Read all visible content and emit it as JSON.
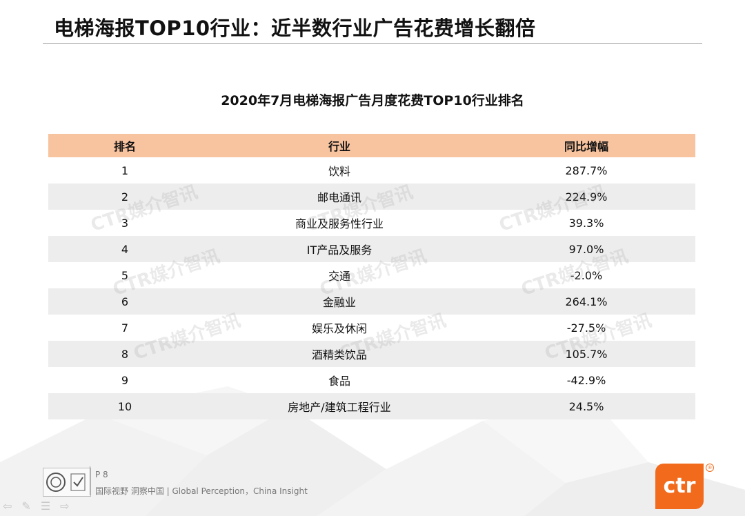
{
  "slide": {
    "title": "电梯海报TOP10行业：近半数行业广告花费增长翻倍"
  },
  "table": {
    "title": "2020年7月电梯海报广告月度花费TOP10行业排名",
    "headers": {
      "rank": "排名",
      "industry": "行业",
      "yoy": "同比增幅"
    },
    "rows": [
      {
        "rank": "1",
        "industry": "饮料",
        "yoy": "287.7%"
      },
      {
        "rank": "2",
        "industry": "邮电通讯",
        "yoy": "224.9%"
      },
      {
        "rank": "3",
        "industry": "商业及服务性行业",
        "yoy": "39.3%"
      },
      {
        "rank": "4",
        "industry": "IT产品及服务",
        "yoy": "97.0%"
      },
      {
        "rank": "5",
        "industry": "交通",
        "yoy": "-2.0%"
      },
      {
        "rank": "6",
        "industry": "金融业",
        "yoy": "264.1%"
      },
      {
        "rank": "7",
        "industry": "娱乐及休闲",
        "yoy": "-27.5%"
      },
      {
        "rank": "8",
        "industry": "酒精类饮品",
        "yoy": "105.7%"
      },
      {
        "rank": "9",
        "industry": "食品",
        "yoy": "-42.9%"
      },
      {
        "rank": "10",
        "industry": "房地产/建筑工程行业",
        "yoy": "24.5%"
      }
    ]
  },
  "watermark": {
    "text": "CTR媒介智讯"
  },
  "footer": {
    "page": "P 8",
    "tagline": "国际视野  洞察中国 |  Global Perception，China Insight",
    "logo_text": "ctr",
    "logo_mark": "®"
  },
  "colors": {
    "header_bg": "#f8c39f",
    "stripe_bg": "#ededed",
    "brand_orange": "#f26b1d"
  }
}
